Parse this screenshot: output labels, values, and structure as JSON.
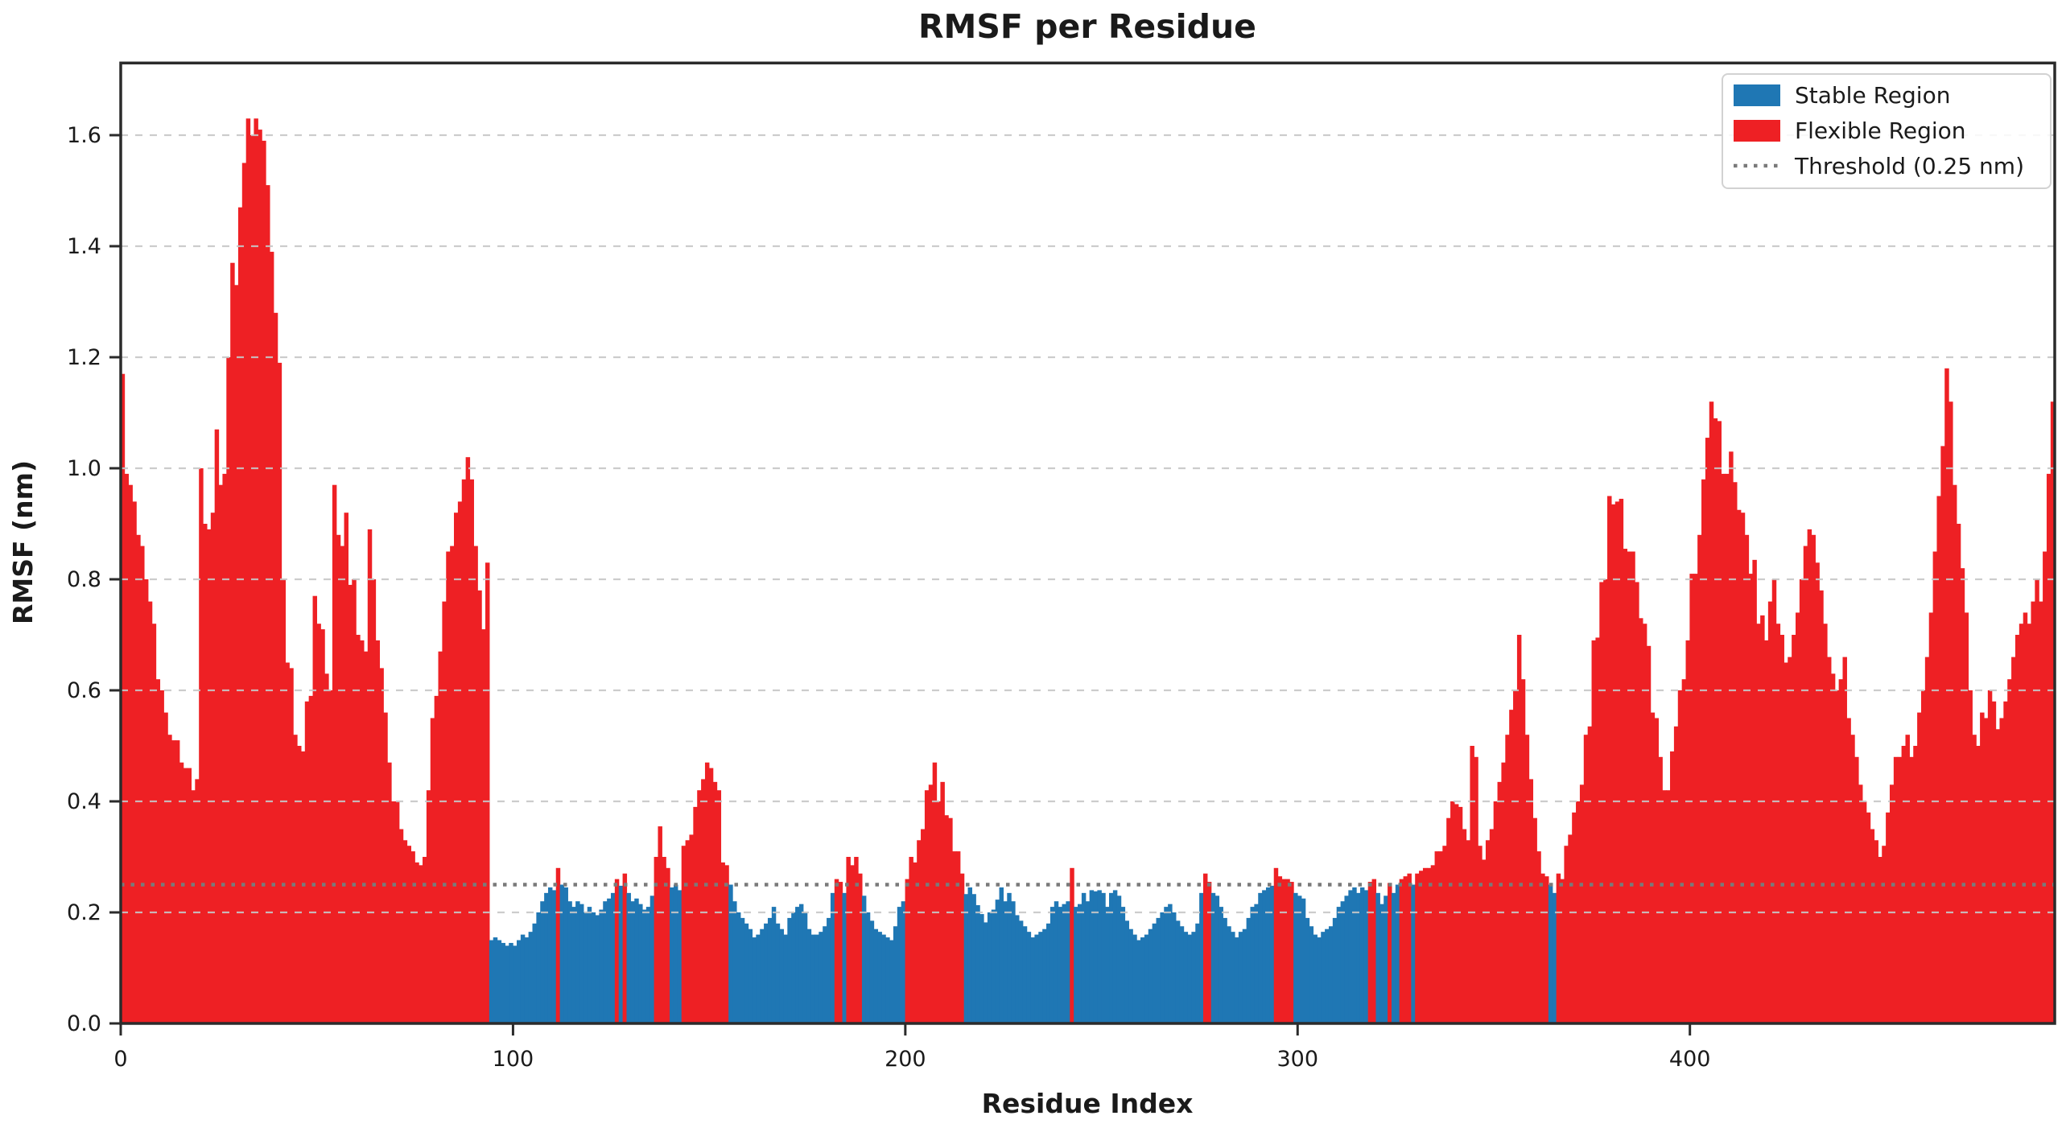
{
  "figure": {
    "title": "RMSF per Residue"
  },
  "colors": {
    "stable": "#1f77b4",
    "flexible": "#ee2024",
    "threshold": "#7a7a7a",
    "grid": "#c7c7c7",
    "spine": "#2b2b2b",
    "text": "#1a1a1a",
    "legend_border": "#d2d2d2",
    "legend_bg": "rgba(255,255,255,0.85)"
  },
  "legend": {
    "items": [
      {
        "label": "Stable Region",
        "swatch": "patch",
        "color_key": "stable"
      },
      {
        "label": "Flexible Region",
        "swatch": "patch",
        "color_key": "flexible"
      },
      {
        "label": "Threshold (0.25 nm)",
        "swatch": "dotted-line",
        "color_key": "threshold"
      }
    ],
    "position": "upper-right"
  },
  "chart_data": {
    "type": "bar",
    "title": "RMSF per Residue",
    "xlabel": "Residue Index",
    "ylabel": "RMSF (nm)",
    "x_start": 0,
    "x_step": 1,
    "threshold_nm": 0.25,
    "xticks": [
      0,
      100,
      200,
      300,
      400
    ],
    "yticks": [
      0.0,
      0.2,
      0.4,
      0.6,
      0.8,
      1.0,
      1.2,
      1.4,
      1.6
    ],
    "ylim": [
      0,
      1.73
    ],
    "xlim": [
      0,
      493
    ],
    "grid": "horizontal-dashed",
    "legend_position": "upper-right",
    "series_rule": "value > threshold_nm -> Flexible Region (red); otherwise Stable Region (blue)",
    "values": [
      1.17,
      0.99,
      0.97,
      0.94,
      0.88,
      0.86,
      0.8,
      0.76,
      0.72,
      0.62,
      0.6,
      0.56,
      0.52,
      0.51,
      0.51,
      0.47,
      0.46,
      0.46,
      0.42,
      0.44,
      1.0,
      0.9,
      0.89,
      0.92,
      1.07,
      0.97,
      0.99,
      1.2,
      1.37,
      1.33,
      1.47,
      1.55,
      1.63,
      1.6,
      1.63,
      1.61,
      1.59,
      1.51,
      1.39,
      1.28,
      1.19,
      0.8,
      0.65,
      0.64,
      0.52,
      0.5,
      0.49,
      0.58,
      0.59,
      0.77,
      0.72,
      0.71,
      0.63,
      0.6,
      0.97,
      0.88,
      0.86,
      0.92,
      0.79,
      0.8,
      0.7,
      0.69,
      0.67,
      0.89,
      0.8,
      0.69,
      0.64,
      0.56,
      0.47,
      0.4,
      0.4,
      0.35,
      0.33,
      0.32,
      0.31,
      0.29,
      0.285,
      0.3,
      0.42,
      0.55,
      0.59,
      0.67,
      0.76,
      0.85,
      0.86,
      0.92,
      0.94,
      0.98,
      1.02,
      0.98,
      0.86,
      0.78,
      0.71,
      0.83,
      0.15,
      0.155,
      0.15,
      0.145,
      0.14,
      0.145,
      0.14,
      0.15,
      0.16,
      0.155,
      0.165,
      0.18,
      0.2,
      0.22,
      0.235,
      0.245,
      0.24,
      0.28,
      0.25,
      0.245,
      0.22,
      0.21,
      0.22,
      0.215,
      0.2,
      0.21,
      0.2,
      0.195,
      0.205,
      0.22,
      0.225,
      0.235,
      0.26,
      0.248,
      0.27,
      0.235,
      0.22,
      0.225,
      0.215,
      0.205,
      0.21,
      0.23,
      0.3,
      0.355,
      0.3,
      0.28,
      0.245,
      0.25,
      0.24,
      0.32,
      0.33,
      0.34,
      0.39,
      0.42,
      0.44,
      0.47,
      0.46,
      0.435,
      0.42,
      0.29,
      0.285,
      0.25,
      0.22,
      0.2,
      0.19,
      0.18,
      0.17,
      0.155,
      0.16,
      0.17,
      0.18,
      0.19,
      0.21,
      0.18,
      0.17,
      0.16,
      0.19,
      0.2,
      0.21,
      0.215,
      0.2,
      0.17,
      0.16,
      0.16,
      0.165,
      0.175,
      0.19,
      0.235,
      0.26,
      0.255,
      0.235,
      0.3,
      0.285,
      0.3,
      0.27,
      0.23,
      0.2,
      0.185,
      0.17,
      0.165,
      0.16,
      0.155,
      0.15,
      0.175,
      0.21,
      0.22,
      0.26,
      0.3,
      0.29,
      0.33,
      0.35,
      0.42,
      0.43,
      0.47,
      0.4,
      0.435,
      0.375,
      0.37,
      0.31,
      0.31,
      0.27,
      0.233,
      0.245,
      0.233,
      0.213,
      0.197,
      0.182,
      0.2,
      0.205,
      0.223,
      0.245,
      0.22,
      0.235,
      0.22,
      0.195,
      0.185,
      0.175,
      0.165,
      0.155,
      0.16,
      0.165,
      0.17,
      0.18,
      0.21,
      0.22,
      0.21,
      0.215,
      0.22,
      0.28,
      0.21,
      0.215,
      0.235,
      0.22,
      0.24,
      0.238,
      0.24,
      0.235,
      0.21,
      0.235,
      0.24,
      0.23,
      0.21,
      0.185,
      0.17,
      0.16,
      0.15,
      0.155,
      0.16,
      0.17,
      0.18,
      0.19,
      0.2,
      0.21,
      0.215,
      0.2,
      0.185,
      0.175,
      0.165,
      0.16,
      0.165,
      0.18,
      0.235,
      0.27,
      0.255,
      0.235,
      0.23,
      0.21,
      0.19,
      0.175,
      0.165,
      0.155,
      0.165,
      0.17,
      0.19,
      0.21,
      0.215,
      0.235,
      0.24,
      0.245,
      0.248,
      0.28,
      0.265,
      0.26,
      0.26,
      0.255,
      0.235,
      0.23,
      0.225,
      0.19,
      0.175,
      0.16,
      0.155,
      0.165,
      0.17,
      0.175,
      0.19,
      0.21,
      0.22,
      0.23,
      0.24,
      0.245,
      0.235,
      0.245,
      0.24,
      0.255,
      0.26,
      0.235,
      0.215,
      0.23,
      0.253,
      0.235,
      0.25,
      0.26,
      0.265,
      0.27,
      0.25,
      0.27,
      0.275,
      0.28,
      0.28,
      0.285,
      0.31,
      0.31,
      0.32,
      0.37,
      0.4,
      0.395,
      0.39,
      0.35,
      0.33,
      0.5,
      0.48,
      0.32,
      0.295,
      0.33,
      0.35,
      0.4,
      0.435,
      0.47,
      0.52,
      0.565,
      0.6,
      0.7,
      0.62,
      0.52,
      0.44,
      0.37,
      0.31,
      0.27,
      0.265,
      0.25,
      0.235,
      0.27,
      0.26,
      0.32,
      0.34,
      0.38,
      0.4,
      0.43,
      0.52,
      0.535,
      0.69,
      0.695,
      0.795,
      0.8,
      0.95,
      0.935,
      0.94,
      0.945,
      0.855,
      0.85,
      0.85,
      0.795,
      0.73,
      0.72,
      0.68,
      0.56,
      0.55,
      0.48,
      0.42,
      0.42,
      0.49,
      0.535,
      0.6,
      0.62,
      0.69,
      0.81,
      0.81,
      0.88,
      0.98,
      1.055,
      1.12,
      1.09,
      1.085,
      0.99,
      0.99,
      1.03,
      0.975,
      0.925,
      0.92,
      0.88,
      0.81,
      0.835,
      0.72,
      0.735,
      0.69,
      0.76,
      0.8,
      0.72,
      0.7,
      0.65,
      0.66,
      0.7,
      0.74,
      0.8,
      0.86,
      0.89,
      0.88,
      0.83,
      0.78,
      0.72,
      0.66,
      0.63,
      0.6,
      0.62,
      0.66,
      0.55,
      0.52,
      0.48,
      0.43,
      0.4,
      0.38,
      0.35,
      0.33,
      0.3,
      0.32,
      0.38,
      0.43,
      0.48,
      0.48,
      0.5,
      0.52,
      0.48,
      0.5,
      0.56,
      0.6,
      0.66,
      0.74,
      0.85,
      0.95,
      1.04,
      1.18,
      1.12,
      0.97,
      0.9,
      0.82,
      0.74,
      0.6,
      0.52,
      0.5,
      0.56,
      0.55,
      0.6,
      0.58,
      0.53,
      0.55,
      0.58,
      0.62,
      0.66,
      0.7,
      0.72,
      0.74,
      0.72,
      0.76,
      0.8,
      0.76,
      0.85,
      0.99,
      1.12
    ]
  }
}
